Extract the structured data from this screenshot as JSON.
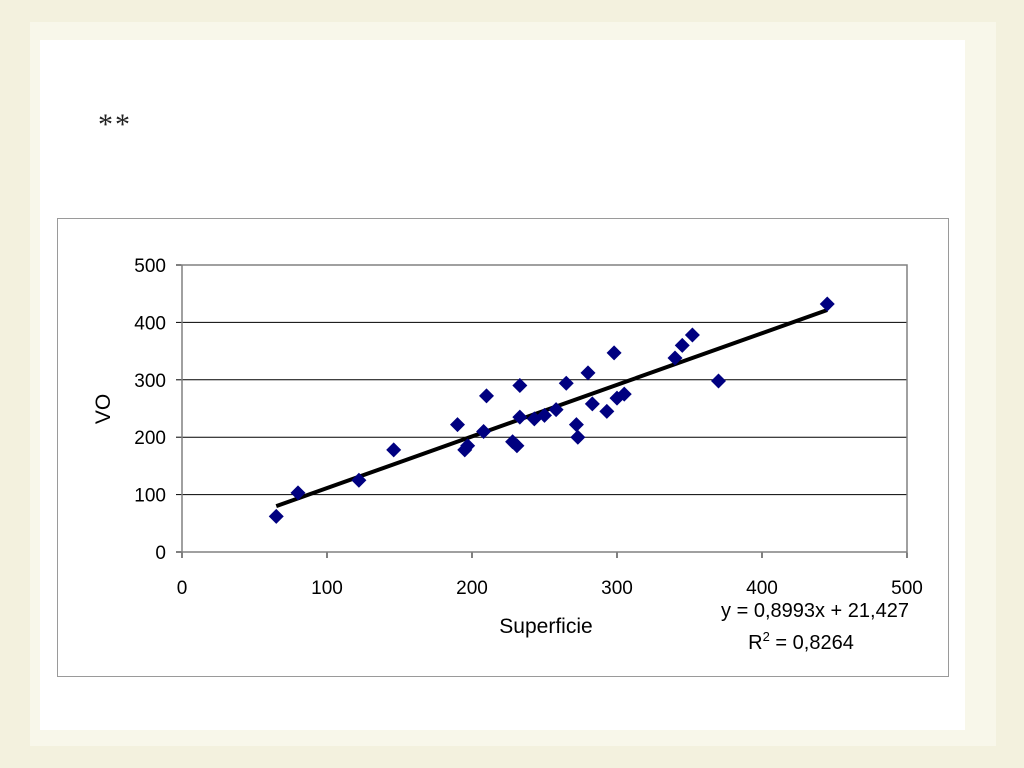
{
  "slide": {
    "marker": "**"
  },
  "chart_data": {
    "type": "scatter",
    "xlabel": "Superficie",
    "ylabel": "VO",
    "xlim": [
      0,
      500
    ],
    "ylim": [
      0,
      500
    ],
    "xticks": [
      0,
      100,
      200,
      300,
      400,
      500
    ],
    "yticks": [
      0,
      100,
      200,
      300,
      400,
      500
    ],
    "grid": "horizontal",
    "marker_color": "#000080",
    "trendline_color": "#000000",
    "points": [
      [
        65,
        62
      ],
      [
        80,
        103
      ],
      [
        122,
        125
      ],
      [
        146,
        178
      ],
      [
        190,
        222
      ],
      [
        195,
        178
      ],
      [
        197,
        185
      ],
      [
        208,
        210
      ],
      [
        210,
        272
      ],
      [
        228,
        192
      ],
      [
        231,
        185
      ],
      [
        233,
        235
      ],
      [
        233,
        290
      ],
      [
        243,
        232
      ],
      [
        250,
        238
      ],
      [
        258,
        248
      ],
      [
        265,
        294
      ],
      [
        272,
        222
      ],
      [
        273,
        200
      ],
      [
        280,
        312
      ],
      [
        283,
        258
      ],
      [
        293,
        245
      ],
      [
        298,
        347
      ],
      [
        300,
        268
      ],
      [
        305,
        275
      ],
      [
        340,
        338
      ],
      [
        345,
        360
      ],
      [
        352,
        378
      ],
      [
        370,
        298
      ],
      [
        445,
        432
      ]
    ],
    "trendline": {
      "slope": 0.8993,
      "intercept": 21.427,
      "x_range": [
        65,
        445
      ]
    },
    "equation": "y = 0,8993x + 21,427",
    "r2_label": "R",
    "r2_sup": "2",
    "r2_value": " = 0,8264"
  }
}
